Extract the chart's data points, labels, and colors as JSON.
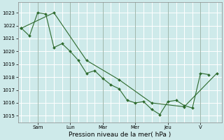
{
  "bg_color": "#ceeaea",
  "grid_color": "#ffffff",
  "line_color": "#2d6a2d",
  "marker_color": "#2d6a2d",
  "xlabel": "Pression niveau de la mer( hPa )",
  "ylim": [
    1014.5,
    1023.8
  ],
  "yticks": [
    1015,
    1016,
    1017,
    1018,
    1019,
    1020,
    1021,
    1022,
    1023
  ],
  "day_labels": [
    "Sam",
    "Lun",
    "Mar",
    "Mer",
    "Jeu",
    "V"
  ],
  "day_positions": [
    24,
    72,
    120,
    168,
    216,
    264
  ],
  "series1_x": [
    0,
    12,
    24,
    36,
    48,
    60,
    72,
    84,
    96,
    108,
    120,
    132,
    144,
    156,
    168,
    180,
    192,
    204,
    216,
    228,
    240,
    252,
    264,
    276
  ],
  "series1_y": [
    1021.8,
    1021.2,
    1023.0,
    1022.9,
    1020.3,
    1020.6,
    1020.0,
    1019.3,
    1018.3,
    1018.5,
    1017.9,
    1017.4,
    1017.1,
    1016.2,
    1016.0,
    1016.1,
    1015.5,
    1015.1,
    1016.1,
    1016.2,
    1015.8,
    1015.6,
    1018.3,
    1018.2
  ],
  "series2_x": [
    0,
    48,
    96,
    144,
    192,
    240,
    288
  ],
  "series2_y": [
    1021.8,
    1023.0,
    1019.3,
    1017.8,
    1016.0,
    1015.7,
    1018.3
  ],
  "xlim": [
    -5,
    295
  ],
  "vline_positions": [
    24,
    72,
    120,
    168,
    216,
    264
  ],
  "vline_color": "#7a9a8a",
  "minor_grid_x_step": 12,
  "tick_fontsize": 5,
  "xlabel_fontsize": 6.5
}
